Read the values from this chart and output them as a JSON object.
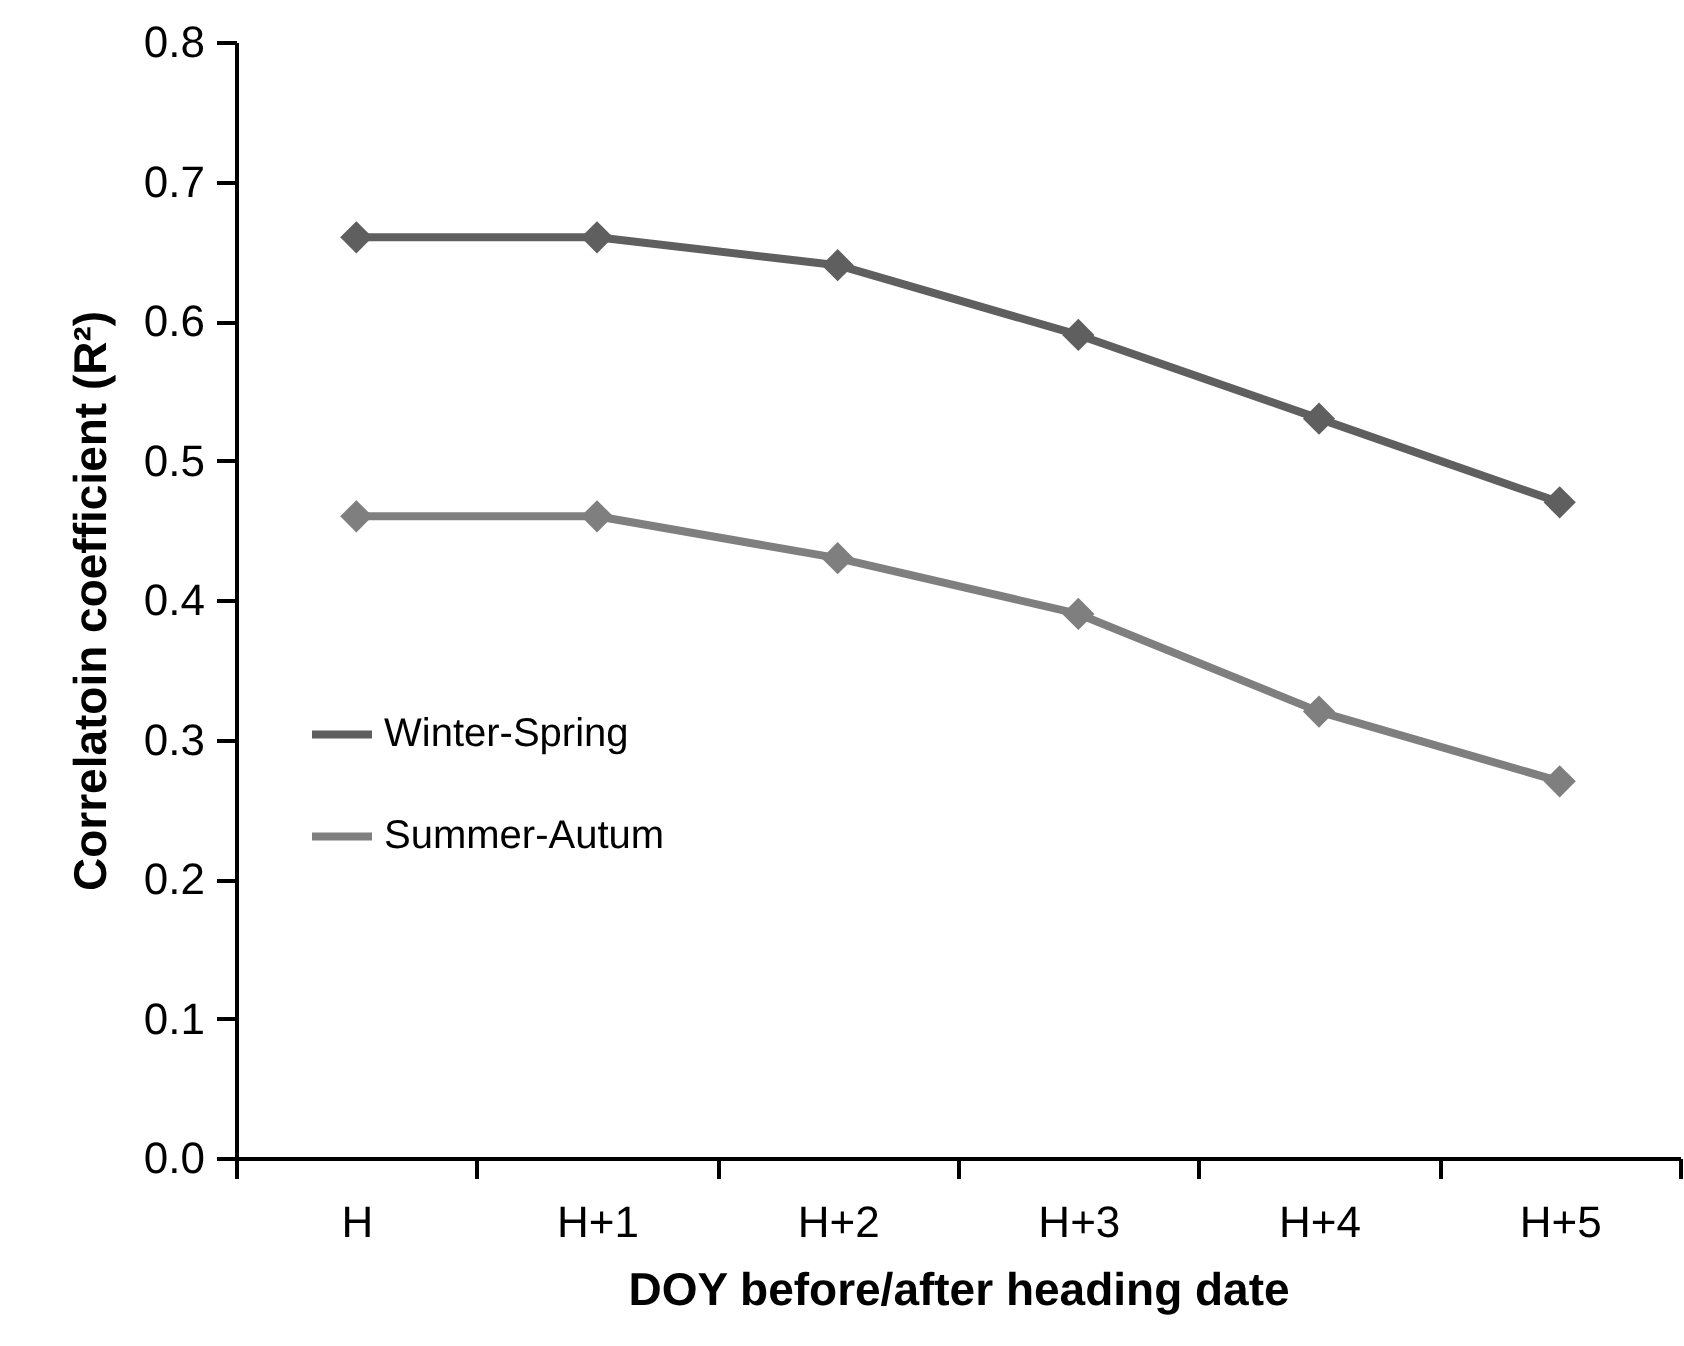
{
  "chart_data": {
    "type": "line",
    "xlabel": "DOY before/after heading date",
    "ylabel": "Correlatoin coefficient (R²)",
    "categories": [
      "H",
      "H+1",
      "H+2",
      "H+3",
      "H+4",
      "H+5"
    ],
    "series": [
      {
        "name": "Winter-Spring",
        "color": "#5f5f5f",
        "values": [
          0.66,
          0.66,
          0.64,
          0.59,
          0.53,
          0.47
        ]
      },
      {
        "name": "Summer-Autum",
        "color": "#7f7f7f",
        "values": [
          0.46,
          0.46,
          0.43,
          0.39,
          0.32,
          0.27
        ]
      }
    ],
    "ylim": [
      0,
      0.8
    ],
    "yticks": [
      {
        "value": 0,
        "label": "0.0"
      },
      0.1,
      0.2,
      0.3,
      0.4,
      0.5,
      0.6,
      0.7,
      0.8
    ],
    "grid": false,
    "legend": "left",
    "marker": "diamond",
    "line_style": "solid"
  }
}
